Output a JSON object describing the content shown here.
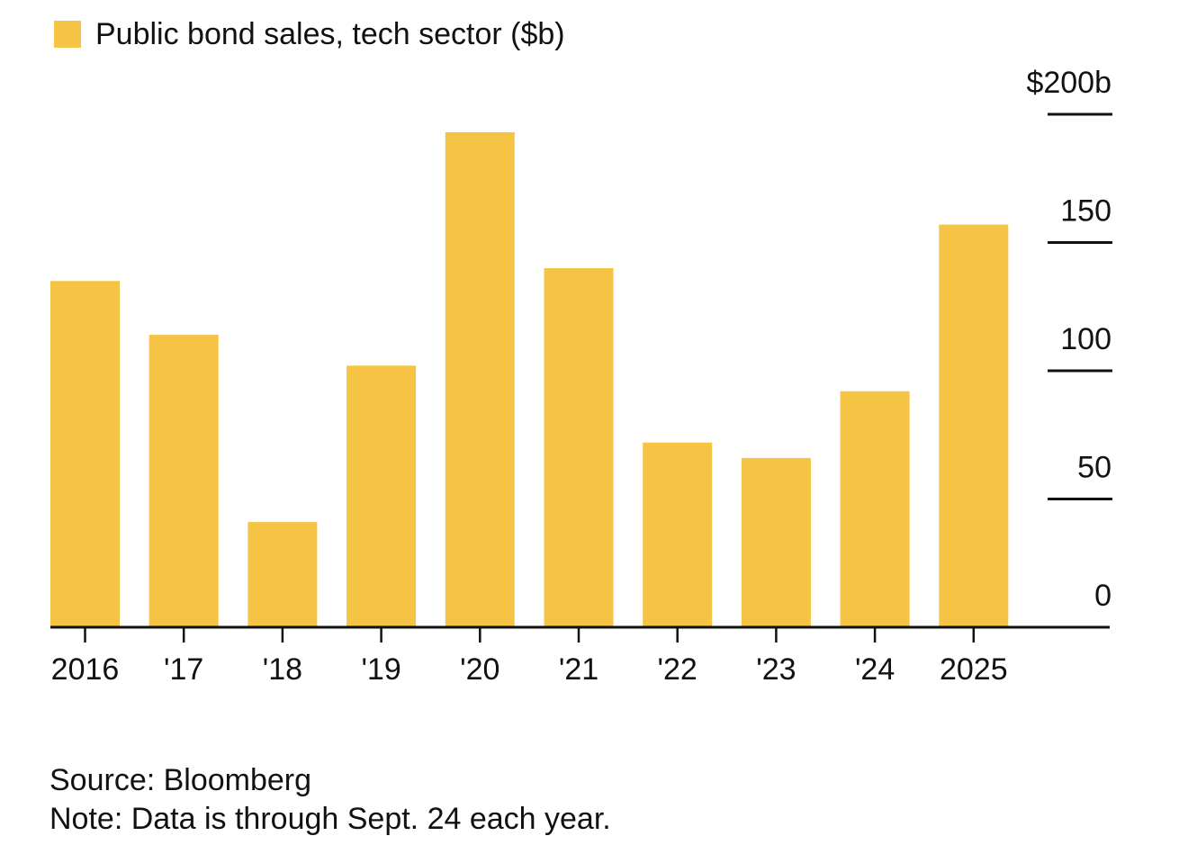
{
  "chart_data": {
    "type": "bar",
    "legend": [
      {
        "label": "Public bond sales, tech sector ($b)",
        "color": "#F5C445"
      }
    ],
    "series": [
      {
        "name": "Public bond sales, tech sector ($b)",
        "values": [
          135,
          114,
          41,
          102,
          193,
          140,
          72,
          66,
          92,
          157
        ]
      }
    ],
    "categories": [
      "2016",
      "'17",
      "'18",
      "'19",
      "'20",
      "'21",
      "'22",
      "'23",
      "'24",
      "2025"
    ],
    "ylim": [
      0,
      200
    ],
    "yticks": [
      0,
      50,
      100,
      150,
      200
    ],
    "ytick_labels": [
      "0",
      "50",
      "100",
      "150",
      "$200b"
    ],
    "y_axis_position": "right",
    "grid": false,
    "legend_placement": "top-left",
    "colors": {
      "bar": "#F5C445",
      "axis": "#111111",
      "text": "#111111"
    }
  },
  "footer": {
    "source": "Source: Bloomberg",
    "note": "Note: Data is through Sept. 24 each year."
  }
}
